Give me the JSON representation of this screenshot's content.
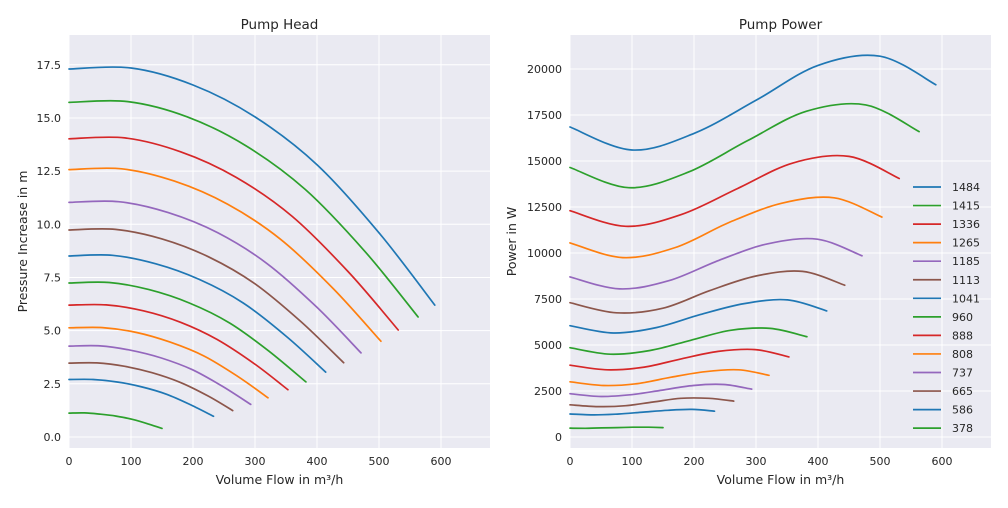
{
  "chart_data": [
    {
      "type": "line",
      "title": "Pump Head",
      "xlabel": "Volume Flow in m³/h",
      "ylabel": "Pressure Increase in m",
      "xlim": [
        0,
        679
      ],
      "ylim": [
        -0.52,
        18.9
      ],
      "xticks": [
        0,
        100,
        200,
        300,
        400,
        500,
        600
      ],
      "xtick_labels": [
        "0",
        "100",
        "200",
        "300",
        "400",
        "500",
        "600"
      ],
      "yticks": [
        0,
        2.5,
        5,
        7.5,
        10,
        12.5,
        15,
        17.5
      ],
      "ytick_labels": [
        "0.0",
        "2.5",
        "5.0",
        "7.5",
        "10.0",
        "12.5",
        "15.0",
        "17.5"
      ],
      "grid": true,
      "legend": "none",
      "series": [
        {
          "name": "1484",
          "color": "#1f77b4",
          "x": [
            0,
            100,
            200,
            300,
            400,
            500,
            590
          ],
          "y": [
            17.3,
            17.35,
            16.55,
            15.05,
            12.8,
            9.6,
            6.2
          ]
        },
        {
          "name": "1415",
          "color": "#2ca02c",
          "x": [
            0,
            95,
            191,
            286,
            381,
            477,
            563
          ],
          "y": [
            15.73,
            15.77,
            15.05,
            13.68,
            11.64,
            8.73,
            5.64
          ]
        },
        {
          "name": "1336",
          "color": "#d62728",
          "x": [
            0,
            90,
            180,
            270,
            360,
            450,
            531
          ],
          "y": [
            14.02,
            14.06,
            13.41,
            12.2,
            10.37,
            7.78,
            5.03
          ]
        },
        {
          "name": "1265",
          "color": "#ff7f0e",
          "x": [
            0,
            85,
            170,
            256,
            341,
            426,
            503
          ],
          "y": [
            12.57,
            12.61,
            12.03,
            10.94,
            9.3,
            6.98,
            4.5
          ]
        },
        {
          "name": "1185",
          "color": "#9467bd",
          "x": [
            0,
            80,
            160,
            240,
            319,
            399,
            471
          ],
          "y": [
            11.03,
            11.06,
            10.55,
            9.6,
            8.16,
            6.12,
            3.95
          ]
        },
        {
          "name": "1113",
          "color": "#8c564b",
          "x": [
            0,
            75,
            150,
            225,
            300,
            375,
            443
          ],
          "y": [
            9.73,
            9.76,
            9.31,
            8.47,
            7.2,
            5.4,
            3.49
          ]
        },
        {
          "name": "1041",
          "color": "#1f77b4",
          "x": [
            0,
            70,
            140,
            210,
            281,
            351,
            414
          ],
          "y": [
            8.51,
            8.54,
            8.14,
            7.41,
            6.3,
            4.72,
            3.05
          ]
        },
        {
          "name": "960",
          "color": "#2ca02c",
          "x": [
            0,
            65,
            129,
            194,
            259,
            323,
            382
          ],
          "y": [
            7.24,
            7.26,
            6.93,
            6.3,
            5.36,
            4.02,
            2.59
          ]
        },
        {
          "name": "888",
          "color": "#d62728",
          "x": [
            0,
            60,
            120,
            180,
            239,
            299,
            353
          ],
          "y": [
            6.2,
            6.21,
            5.93,
            5.39,
            4.58,
            3.44,
            2.22
          ]
        },
        {
          "name": "808",
          "color": "#ff7f0e",
          "x": [
            0,
            54,
            109,
            163,
            218,
            272,
            321
          ],
          "y": [
            5.13,
            5.14,
            4.91,
            4.46,
            3.8,
            2.85,
            1.84
          ]
        },
        {
          "name": "737",
          "color": "#9467bd",
          "x": [
            0,
            50,
            99,
            149,
            199,
            248,
            293
          ],
          "y": [
            4.27,
            4.28,
            4.08,
            3.71,
            3.16,
            2.37,
            1.53
          ]
        },
        {
          "name": "665",
          "color": "#8c564b",
          "x": [
            0,
            45,
            90,
            134,
            179,
            224,
            264
          ],
          "y": [
            3.47,
            3.48,
            3.32,
            3.02,
            2.57,
            1.93,
            1.24
          ]
        },
        {
          "name": "586",
          "color": "#1f77b4",
          "x": [
            0,
            39,
            79,
            118,
            158,
            197,
            233
          ],
          "y": [
            2.7,
            2.7,
            2.58,
            2.35,
            2.0,
            1.5,
            0.97
          ]
        },
        {
          "name": "378",
          "color": "#2ca02c",
          "x": [
            0,
            25,
            51,
            76,
            102,
            127,
            150
          ],
          "y": [
            1.12,
            1.13,
            1.07,
            0.98,
            0.83,
            0.62,
            0.4
          ]
        }
      ]
    },
    {
      "type": "line",
      "title": "Pump Power",
      "xlabel": "Volume Flow in m³/h",
      "ylabel": "Power in W",
      "xlim": [
        0,
        679
      ],
      "ylim": [
        -600,
        21850
      ],
      "xticks": [
        0,
        100,
        200,
        300,
        400,
        500,
        600
      ],
      "xtick_labels": [
        "0",
        "100",
        "200",
        "300",
        "400",
        "500",
        "600"
      ],
      "yticks": [
        0,
        2500,
        5000,
        7500,
        10000,
        12500,
        15000,
        17500,
        20000
      ],
      "ytick_labels": [
        "0",
        "2500",
        "5000",
        "7500",
        "10000",
        "12500",
        "15000",
        "17500",
        "20000"
      ],
      "grid": true,
      "legend": "center-right",
      "series": [
        {
          "name": "1484",
          "color": "#1f77b4",
          "x": [
            0,
            100,
            200,
            300,
            400,
            500,
            590
          ],
          "y": [
            16850,
            15600,
            16500,
            18300,
            20200,
            20700,
            19150
          ]
        },
        {
          "name": "1415",
          "color": "#2ca02c",
          "x": [
            0,
            95,
            191,
            286,
            381,
            477,
            563
          ],
          "y": [
            14650,
            13550,
            14400,
            16100,
            17700,
            18050,
            16600
          ]
        },
        {
          "name": "1336",
          "color": "#d62728",
          "x": [
            0,
            90,
            180,
            270,
            360,
            450,
            531
          ],
          "y": [
            12300,
            11450,
            12100,
            13500,
            14900,
            15250,
            14050
          ]
        },
        {
          "name": "1265",
          "color": "#ff7f0e",
          "x": [
            0,
            85,
            170,
            256,
            341,
            426,
            503
          ],
          "y": [
            10550,
            9750,
            10300,
            11650,
            12700,
            13000,
            11950
          ]
        },
        {
          "name": "1185",
          "color": "#9467bd",
          "x": [
            0,
            80,
            160,
            240,
            319,
            399,
            471
          ],
          "y": [
            8700,
            8050,
            8500,
            9600,
            10500,
            10750,
            9850
          ]
        },
        {
          "name": "1113",
          "color": "#8c564b",
          "x": [
            0,
            75,
            150,
            225,
            300,
            375,
            443
          ],
          "y": [
            7300,
            6750,
            7000,
            7950,
            8750,
            9000,
            8250
          ]
        },
        {
          "name": "1041",
          "color": "#1f77b4",
          "x": [
            0,
            70,
            140,
            210,
            281,
            351,
            414
          ],
          "y": [
            6050,
            5650,
            5950,
            6650,
            7250,
            7450,
            6850
          ]
        },
        {
          "name": "960",
          "color": "#2ca02c",
          "x": [
            0,
            65,
            129,
            194,
            259,
            323,
            382
          ],
          "y": [
            4850,
            4500,
            4700,
            5250,
            5800,
            5900,
            5450
          ]
        },
        {
          "name": "888",
          "color": "#d62728",
          "x": [
            0,
            60,
            120,
            180,
            239,
            299,
            353
          ],
          "y": [
            3900,
            3650,
            3800,
            4250,
            4650,
            4750,
            4350
          ]
        },
        {
          "name": "808",
          "color": "#ff7f0e",
          "x": [
            0,
            54,
            109,
            163,
            218,
            272,
            321
          ],
          "y": [
            3000,
            2800,
            2900,
            3250,
            3550,
            3650,
            3350
          ]
        },
        {
          "name": "737",
          "color": "#9467bd",
          "x": [
            0,
            50,
            99,
            149,
            199,
            248,
            293
          ],
          "y": [
            2350,
            2200,
            2300,
            2550,
            2800,
            2850,
            2600
          ]
        },
        {
          "name": "665",
          "color": "#8c564b",
          "x": [
            0,
            45,
            90,
            134,
            179,
            224,
            264
          ],
          "y": [
            1750,
            1650,
            1700,
            1900,
            2100,
            2100,
            1950
          ]
        },
        {
          "name": "586",
          "color": "#1f77b4",
          "x": [
            0,
            39,
            79,
            118,
            158,
            197,
            233
          ],
          "y": [
            1250,
            1200,
            1250,
            1350,
            1450,
            1500,
            1400
          ]
        },
        {
          "name": "378",
          "color": "#2ca02c",
          "x": [
            0,
            25,
            51,
            76,
            102,
            127,
            150
          ],
          "y": [
            480,
            470,
            490,
            510,
            530,
            530,
            510
          ]
        }
      ]
    }
  ],
  "style": {
    "background": "#eaeaf2",
    "grid": "#ffffff",
    "text": "#262626"
  }
}
